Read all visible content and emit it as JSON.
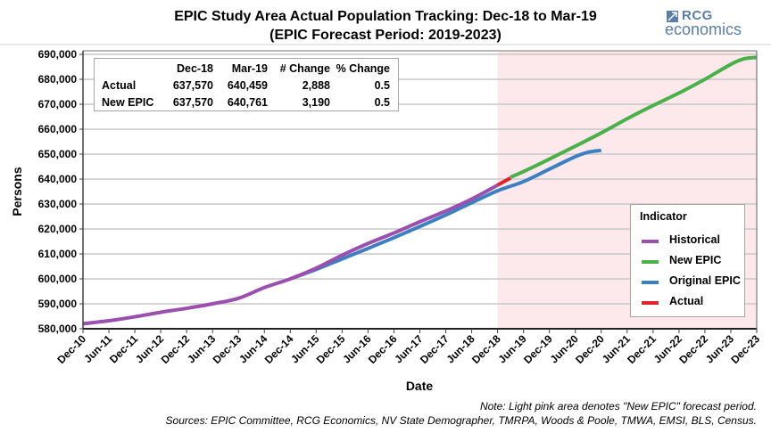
{
  "title": "EPIC Study Area Actual Population Tracking: Dec-18 to Mar-19",
  "subtitle": "(EPIC Forecast Period: 2019-2023)",
  "logo": {
    "brand": "RCG",
    "tagline": "economics",
    "icon": "arrow-chart-icon"
  },
  "summary_table": {
    "headers": [
      "",
      "Dec-18",
      "Mar-19",
      "# Change",
      "% Change"
    ],
    "rows": [
      [
        "Actual",
        "637,570",
        "640,459",
        "2,888",
        "0.5"
      ],
      [
        "New EPIC",
        "637,570",
        "640,761",
        "3,190",
        "0.5"
      ]
    ]
  },
  "notes": {
    "line1": "Note: Light pink area denotes \"New EPIC\" forecast period.",
    "line2": "Sources: EPIC Committee, RCG Economics, NV State Demographer, TMRPA, Woods & Poole, TMWA, EMSI, BLS, Census."
  },
  "chart_data": {
    "type": "line",
    "title": "EPIC Study Area Actual Population Tracking: Dec-18 to Mar-19",
    "subtitle": "(EPIC Forecast Period: 2019-2023)",
    "xlabel": "Date",
    "ylabel": "Persons",
    "ylim": [
      580000,
      690000
    ],
    "yticks": [
      580000,
      590000,
      600000,
      610000,
      620000,
      630000,
      640000,
      650000,
      660000,
      670000,
      680000,
      690000
    ],
    "ytick_labels": [
      "580,000",
      "590,000",
      "600,000",
      "610,000",
      "620,000",
      "630,000",
      "640,000",
      "650,000",
      "660,000",
      "670,000",
      "680,000",
      "690,000"
    ],
    "x_unit": "months since Dec-10",
    "xlim": [
      0,
      156
    ],
    "xtick_labels": [
      "Dec-10",
      "Jun-11",
      "Dec-11",
      "Jun-12",
      "Dec-12",
      "Jun-13",
      "Dec-13",
      "Jun-14",
      "Dec-14",
      "Jun-15",
      "Dec-15",
      "Jun-16",
      "Dec-16",
      "Jun-17",
      "Dec-17",
      "Jun-18",
      "Dec-18",
      "Jun-19",
      "Dec-19",
      "Jun-20",
      "Dec-20",
      "Jun-21",
      "Dec-21",
      "Jun-22",
      "Dec-22",
      "Jun-23",
      "Dec-23"
    ],
    "grid": "horizontal",
    "legend": {
      "title": "Indicator",
      "position": "right"
    },
    "shaded_region": {
      "label": "New EPIC forecast period",
      "x_start": 96,
      "x_end": 156,
      "color": "#fde9ec"
    },
    "series": [
      {
        "name": "Historical",
        "color": "#9b4fae",
        "x": [
          0,
          6,
          12,
          18,
          24,
          30,
          36,
          42,
          48,
          54,
          60,
          66,
          72,
          78,
          84,
          90,
          96
        ],
        "y": [
          582000,
          583200,
          584800,
          586600,
          588200,
          590000,
          592200,
          596500,
          600000,
          604300,
          609500,
          614200,
          618400,
          622900,
          627200,
          632000,
          637570
        ]
      },
      {
        "name": "New EPIC",
        "color": "#4cb04a",
        "x": [
          99,
          102,
          108,
          114,
          120,
          126,
          132,
          138,
          144,
          150,
          153,
          156
        ],
        "y": [
          640761,
          643000,
          648000,
          653200,
          658500,
          664200,
          669500,
          674500,
          680000,
          686000,
          688200,
          688800
        ]
      },
      {
        "name": "Original EPIC",
        "color": "#3d7fc1",
        "x": [
          48,
          54,
          60,
          66,
          72,
          78,
          84,
          90,
          96,
          102,
          108,
          114,
          117,
          120
        ],
        "y": [
          600000,
          603800,
          608000,
          612200,
          616500,
          621000,
          625600,
          630500,
          635300,
          639000,
          644000,
          649000,
          650800,
          651500
        ]
      },
      {
        "name": "Actual",
        "color": "#e3232c",
        "x": [
          96,
          99
        ],
        "y": [
          637570,
          640459
        ]
      }
    ]
  }
}
